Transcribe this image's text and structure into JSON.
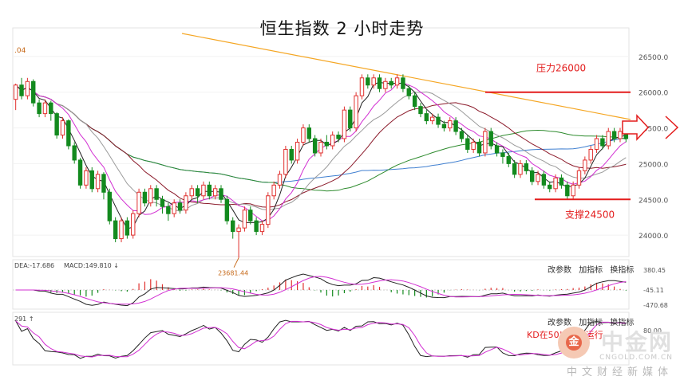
{
  "title": "恒生指数 2 小时走势",
  "colors": {
    "up": "#e0302e",
    "down": "#138a1e",
    "annotation": "#e31c1c",
    "ma_orange": "#f5a623",
    "ma_blue": "#3f7fd0",
    "ma_green": "#2e8b2e",
    "ma_darkred": "#8b1a2a",
    "ma_gray": "#9a9a9a",
    "ma_magenta": "#d22fd2",
    "ma_black": "#222222"
  },
  "chart_data": {
    "type": "candlestick",
    "title": "恒生指数 2 小时走势",
    "ylim": [
      23700,
      26900
    ],
    "y_ticks": [
      26500.0,
      26000.0,
      25500.0,
      25000.0,
      24500.0,
      24000.0
    ],
    "y_tick_labels": [
      "26500.0",
      "26000.0",
      "25500.0",
      "25000.0",
      "24500.0",
      "24000.0"
    ],
    "top_left_label": ".04",
    "low_marker": {
      "value": 23681.44,
      "label": "23681.44"
    },
    "annotations": [
      {
        "text": "压力26000",
        "value": 26000,
        "type": "resistance"
      },
      {
        "text": "支撑24500",
        "value": 24500,
        "type": "support"
      },
      {
        "text": "KD在50以上方运行",
        "type": "note"
      }
    ],
    "candles": [
      [
        25900,
        26100,
        25750,
        26120
      ],
      [
        26100,
        25950,
        25900,
        26200
      ],
      [
        25950,
        26150,
        25900,
        26200
      ],
      [
        26150,
        25850,
        25800,
        26180
      ],
      [
        25850,
        25700,
        25650,
        25900
      ],
      [
        25700,
        25850,
        25650,
        25900
      ],
      [
        25850,
        25700,
        25600,
        25880
      ],
      [
        25700,
        25400,
        25350,
        25720
      ],
      [
        25400,
        25600,
        25350,
        25650
      ],
      [
        25600,
        25250,
        25200,
        25620
      ],
      [
        25250,
        25050,
        25000,
        25300
      ],
      [
        25050,
        24700,
        24650,
        25080
      ],
      [
        24700,
        24900,
        24650,
        24950
      ],
      [
        24900,
        24650,
        24600,
        24950
      ],
      [
        24650,
        24850,
        24600,
        24900
      ],
      [
        24850,
        24600,
        24500,
        24880
      ],
      [
        24600,
        24200,
        24150,
        24650
      ],
      [
        24200,
        23950,
        23900,
        24250
      ],
      [
        23950,
        24200,
        23900,
        24250
      ],
      [
        24200,
        24000,
        23950,
        24250
      ],
      [
        24000,
        24300,
        23950,
        24350
      ],
      [
        24300,
        24600,
        24250,
        24650
      ],
      [
        24600,
        24450,
        24400,
        24650
      ],
      [
        24450,
        24650,
        24400,
        24700
      ],
      [
        24650,
        24500,
        24400,
        24700
      ],
      [
        24500,
        24400,
        24300,
        24550
      ],
      [
        24400,
        24300,
        24200,
        24450
      ],
      [
        24300,
        24450,
        24250,
        24500
      ],
      [
        24450,
        24350,
        24300,
        24500
      ],
      [
        24350,
        24550,
        24300,
        24600
      ],
      [
        24550,
        24650,
        24500,
        24700
      ],
      [
        24650,
        24550,
        24450,
        24700
      ],
      [
        24550,
        24700,
        24500,
        24750
      ],
      [
        24700,
        24550,
        24500,
        24750
      ],
      [
        24550,
        24650,
        24500,
        24700
      ],
      [
        24650,
        24500,
        24450,
        24700
      ],
      [
        24500,
        24200,
        24150,
        24550
      ],
      [
        24200,
        24050,
        23950,
        24250
      ],
      [
        24050,
        24100,
        23681.44,
        24150
      ],
      [
        24100,
        24350,
        24050,
        24400
      ],
      [
        24350,
        24200,
        24150,
        24400
      ],
      [
        24200,
        24050,
        24000,
        24250
      ],
      [
        24050,
        24150,
        24000,
        24200
      ],
      [
        24150,
        24550,
        24100,
        24600
      ],
      [
        24550,
        24700,
        24500,
        24750
      ],
      [
        24700,
        24850,
        24650,
        24900
      ],
      [
        24850,
        25200,
        24800,
        25250
      ],
      [
        25200,
        25050,
        25000,
        25250
      ],
      [
        25050,
        25300,
        25000,
        25350
      ],
      [
        25300,
        25500,
        25250,
        25550
      ],
      [
        25500,
        25350,
        25300,
        25550
      ],
      [
        25350,
        25150,
        25100,
        25400
      ],
      [
        25150,
        25300,
        25100,
        25350
      ],
      [
        25300,
        25250,
        25200,
        25400
      ],
      [
        25250,
        25400,
        25200,
        25450
      ],
      [
        25400,
        25350,
        25300,
        25450
      ],
      [
        25350,
        25750,
        25300,
        25800
      ],
      [
        25750,
        25500,
        25450,
        25800
      ],
      [
        25500,
        25950,
        25450,
        26000
      ],
      [
        25950,
        26200,
        25900,
        26250
      ],
      [
        26200,
        26100,
        26050,
        26250
      ],
      [
        26100,
        26200,
        26050,
        26250
      ],
      [
        26200,
        26050,
        26000,
        26250
      ],
      [
        26050,
        26150,
        26000,
        26200
      ],
      [
        26150,
        26100,
        26050,
        26200
      ],
      [
        26100,
        26200,
        26050,
        26250
      ],
      [
        26200,
        26050,
        26000,
        26250
      ],
      [
        26050,
        25950,
        25900,
        26100
      ],
      [
        25950,
        25800,
        25750,
        26000
      ],
      [
        25800,
        25700,
        25650,
        25850
      ],
      [
        25700,
        25600,
        25550,
        25750
      ],
      [
        25600,
        25650,
        25550,
        25700
      ],
      [
        25650,
        25550,
        25500,
        25700
      ],
      [
        25550,
        25500,
        25450,
        25600
      ],
      [
        25500,
        25600,
        25450,
        25650
      ],
      [
        25600,
        25450,
        25400,
        25650
      ],
      [
        25450,
        25350,
        25300,
        25500
      ],
      [
        25350,
        25200,
        25150,
        25400
      ],
      [
        25200,
        25300,
        25150,
        25350
      ],
      [
        25300,
        25150,
        25100,
        25350
      ],
      [
        25150,
        25450,
        25100,
        25500
      ],
      [
        25450,
        25250,
        25200,
        25500
      ],
      [
        25250,
        25150,
        25100,
        25300
      ],
      [
        25150,
        25100,
        25000,
        25200
      ],
      [
        25100,
        25000,
        24950,
        25150
      ],
      [
        25000,
        24850,
        24800,
        25050
      ],
      [
        24850,
        25000,
        24800,
        25050
      ],
      [
        25000,
        24900,
        24850,
        25050
      ],
      [
        24900,
        24750,
        24700,
        24950
      ],
      [
        24750,
        24850,
        24700,
        24900
      ],
      [
        24850,
        24700,
        24650,
        24900
      ],
      [
        24700,
        24650,
        24600,
        24750
      ],
      [
        24650,
        24800,
        24600,
        24850
      ],
      [
        24800,
        24700,
        24650,
        24850
      ],
      [
        24700,
        24550,
        24500,
        24750
      ],
      [
        24550,
        24700,
        24500,
        24750
      ],
      [
        24700,
        24900,
        24650,
        24950
      ],
      [
        24900,
        25050,
        24850,
        25100
      ],
      [
        25050,
        25200,
        25000,
        25250
      ],
      [
        25200,
        25350,
        25150,
        25400
      ],
      [
        25350,
        25250,
        25200,
        25400
      ],
      [
        25250,
        25450,
        25200,
        25500
      ],
      [
        25450,
        25350,
        25300,
        25500
      ],
      [
        25350,
        25450,
        25300,
        25500
      ],
      [
        25450,
        25350,
        25300,
        25500
      ]
    ],
    "macd": {
      "label_dea": "DEA:-17.686",
      "label_macd": "MACD:149.810",
      "tools": [
        "改参数",
        "加指标",
        "换指标"
      ],
      "y_ticks": [
        380.45,
        -45.11,
        -470.68
      ],
      "y_tick_labels": [
        "380.45",
        "-45.11",
        "-470.68"
      ]
    },
    "kd": {
      "label": "291",
      "tools": [
        "改参数",
        "加指标",
        "换指标"
      ],
      "y_ticks": [
        80.0
      ],
      "y_tick_labels": [
        "80.00"
      ]
    }
  },
  "watermark": {
    "brand": "中金网",
    "url": "CNGOLD.COM.CN",
    "sub": "中文财经新媒体",
    "logo_glyph": "金"
  }
}
